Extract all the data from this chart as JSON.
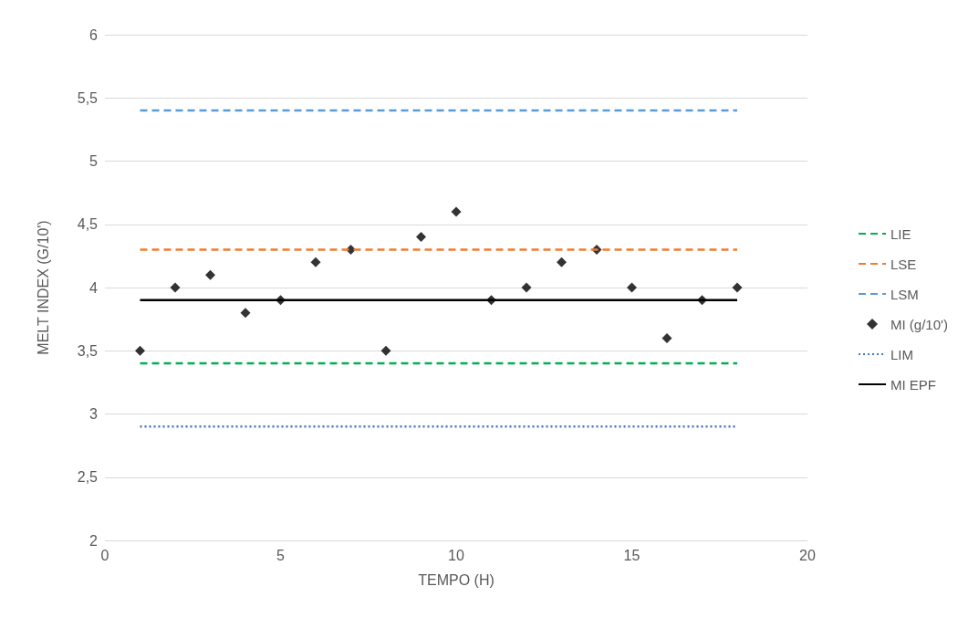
{
  "chart_data": {
    "type": "line",
    "xlabel": "TEMPO (H)",
    "ylabel": "MELT INDEX (G/10')",
    "xlim": [
      0,
      20
    ],
    "xticks": [
      0,
      5,
      10,
      15,
      20
    ],
    "ylim": [
      2,
      6
    ],
    "yticks": [
      2,
      {
        "value": 2.5,
        "label": "2,5"
      },
      3,
      {
        "value": 3.5,
        "label": "3,5"
      },
      4,
      {
        "value": 4.5,
        "label": "4,5"
      },
      5,
      {
        "value": 5.5,
        "label": "5,5"
      },
      6
    ],
    "grid": "y",
    "legend": "right",
    "series": [
      {
        "name": "LIE",
        "type": "line",
        "color": "#00b050",
        "line_style": "dashed",
        "marker": "none",
        "x": [
          1,
          18
        ],
        "values": [
          3.4,
          3.4
        ]
      },
      {
        "name": "LSE",
        "type": "line",
        "color": "#ed7d31",
        "line_style": "dashed",
        "marker": "none",
        "x": [
          1,
          18
        ],
        "values": [
          4.3,
          4.3
        ]
      },
      {
        "name": "LSM",
        "type": "line",
        "color": "#5b9bd5",
        "line_style": "dashed",
        "marker": "none",
        "x": [
          1,
          18
        ],
        "values": [
          5.4,
          5.4
        ]
      },
      {
        "name": "MI (g/10')",
        "type": "scatter",
        "color": "#000000",
        "marker": "diamond",
        "x": [
          1,
          2,
          3,
          4,
          5,
          6,
          7,
          8,
          9,
          10,
          11,
          12,
          13,
          14,
          15,
          16,
          17,
          18
        ],
        "values": [
          3.5,
          4.0,
          4.1,
          3.8,
          3.9,
          4.2,
          4.3,
          3.5,
          4.4,
          4.6,
          3.9,
          4.0,
          4.2,
          4.3,
          4.0,
          3.6,
          3.9,
          4.0
        ]
      },
      {
        "name": "LIM",
        "type": "line",
        "color": "#4472c4",
        "line_style": "dotted",
        "marker": "none",
        "x": [
          1,
          18
        ],
        "values": [
          2.9,
          2.9
        ]
      },
      {
        "name": "MI EPF",
        "type": "line",
        "color": "#000000",
        "line_style": "solid",
        "marker": "none",
        "x": [
          1,
          18
        ],
        "values": [
          3.9,
          3.9
        ]
      }
    ]
  }
}
